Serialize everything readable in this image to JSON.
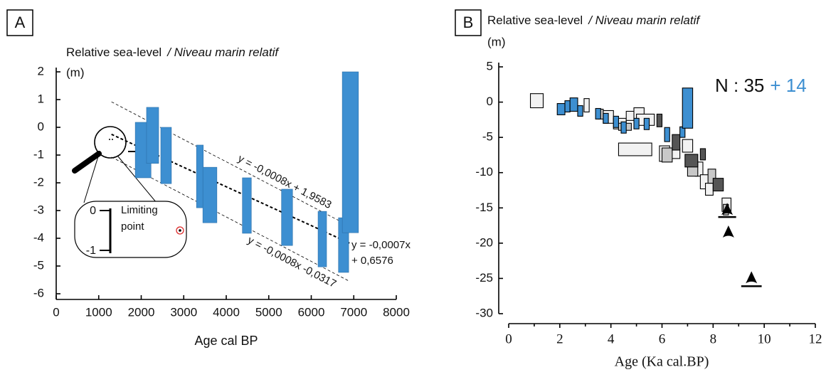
{
  "chart_data": [
    {
      "type": "range",
      "panel": "A",
      "title": "Relative sea-level",
      "title_italic": "/ Niveau marin relatif",
      "y_unit": "(m)",
      "xlabel": "Age cal BP",
      "xlim": [
        0,
        8000
      ],
      "xticks": [
        0,
        1000,
        2000,
        3000,
        4000,
        5000,
        6000,
        7000,
        8000
      ],
      "ylim": [
        -6,
        2
      ],
      "yticks": [
        -6,
        -5,
        -4,
        -3,
        -2,
        -1,
        0,
        1,
        2
      ],
      "series": [
        {
          "color": "#3d8fd1",
          "x0": [
            1860,
            2125,
            2460,
            3300,
            3450,
            4380,
            5300,
            6160,
            6640,
            6730
          ],
          "x1": [
            2230,
            2410,
            2710,
            3460,
            3780,
            4590,
            5560,
            6360,
            6880,
            7110
          ],
          "y0": [
            0.18,
            0.72,
            0,
            -0.64,
            -1.44,
            -1.82,
            -2.23,
            -3.03,
            -3.26,
            2.0
          ],
          "y1": [
            -1.82,
            -1.3,
            -2.03,
            -2.9,
            -3.44,
            -3.82,
            -4.26,
            -5.03,
            -5.23,
            -3.8
          ]
        }
      ],
      "trend_lines": [
        {
          "slope": -0.0008,
          "intercept": 1.9583,
          "x": [
            1300,
            6900
          ],
          "label": [
            "y = -0,0008x + 1,9583"
          ]
        },
        {
          "slope": -0.0007,
          "intercept": 0.6576,
          "x": [
            1300,
            6900
          ],
          "label": [
            "y = -0,0007x",
            "+ 0,6576"
          ]
        },
        {
          "slope": -0.0008,
          "intercept": -0.0317,
          "x": [
            1300,
            6900
          ],
          "label": [
            "y = -0,0008x -0,0317"
          ]
        }
      ],
      "inset": {
        "label": [
          "Limiting",
          "point"
        ],
        "ticks": [
          "0",
          "-1"
        ]
      }
    },
    {
      "type": "range",
      "panel": "B",
      "title": "Relative sea-level",
      "title_italic": "/ Niveau marin relatif",
      "y_unit": "(m)",
      "xlabel": "Age (Ka cal.BP)",
      "xlim": [
        0,
        12
      ],
      "xticks": [
        0,
        2,
        4,
        6,
        8,
        10,
        12
      ],
      "xminorticks": [
        1,
        3,
        5,
        7,
        9,
        11
      ],
      "ylim": [
        -30,
        5
      ],
      "yticks": [
        -30,
        -25,
        -20,
        -15,
        -10,
        -5,
        0,
        5
      ],
      "series": [
        {
          "color": "#f2f2f2",
          "x0": [
            0.85,
            2.95,
            3.7,
            4.1,
            4.6,
            4.9,
            5.0,
            4.3,
            5.9,
            6.2,
            6.8,
            7.3,
            7.5,
            7.7,
            8.35
          ],
          "x1": [
            1.35,
            3.15,
            4.1,
            4.6,
            5.0,
            5.3,
            5.7,
            5.6,
            6.3,
            6.7,
            7.2,
            7.6,
            7.9,
            8.0,
            8.7
          ],
          "y0": [
            1.2,
            0.5,
            -1.2,
            -2.3,
            -1.3,
            -0.8,
            -1.7,
            -5.8,
            -6.2,
            -6.5,
            -5.3,
            -8.5,
            -10.3,
            -11.5,
            -13.6
          ],
          "y1": [
            -0.8,
            -1.4,
            -3.0,
            -3.8,
            -2.6,
            -2.5,
            -3.3,
            -7.6,
            -8.4,
            -8.0,
            -7.1,
            -10.5,
            -12.3,
            -13.2,
            -15.5
          ]
        },
        {
          "color": "#c8c8c8",
          "x0": [
            4.3,
            6.0,
            7.0,
            7.8,
            8.4,
            3.5
          ],
          "x1": [
            4.8,
            6.4,
            7.4,
            8.1,
            8.6,
            3.7
          ],
          "y0": [
            -3.0,
            -6.5,
            -8.3,
            -9.5,
            -14.5,
            -1.0
          ],
          "y1": [
            -4.0,
            -8.5,
            -10.5,
            -11.5,
            -16.0,
            -2.4
          ]
        },
        {
          "color": "#555555",
          "x0": [
            5.8,
            6.4,
            6.9,
            7.5,
            8.0
          ],
          "x1": [
            6.0,
            6.7,
            7.4,
            7.7,
            8.4
          ],
          "y0": [
            -1.7,
            -4.6,
            -7.4,
            -6.6,
            -10.8
          ],
          "y1": [
            -3.5,
            -6.8,
            -9.2,
            -8.2,
            -12.6
          ]
        },
        {
          "color": "#3d8fd1",
          "x0": [
            1.9,
            2.2,
            2.4,
            2.7,
            3.4,
            3.7,
            4.1,
            4.4,
            4.9,
            5.3,
            6.1,
            6.7,
            6.8
          ],
          "x1": [
            2.2,
            2.4,
            2.7,
            2.9,
            3.6,
            3.9,
            4.3,
            4.6,
            5.1,
            5.5,
            6.3,
            6.9,
            7.2
          ],
          "y0": [
            -0.2,
            0.2,
            0.6,
            -0.5,
            -0.9,
            -1.6,
            -2.0,
            -2.8,
            -2.3,
            -2.3,
            -3.6,
            -3.5,
            2.0
          ],
          "y1": [
            -1.8,
            -1.4,
            -1.3,
            -2.0,
            -2.4,
            -3.0,
            -3.6,
            -4.4,
            -3.8,
            -3.9,
            -5.6,
            -5.0,
            -3.7
          ]
        }
      ],
      "limiting_points": {
        "x": [
          8.55,
          8.6,
          9.5
        ],
        "y": [
          -15.3,
          -18.5,
          -25
        ]
      },
      "limiting_bars": {
        "x0": [
          8.2,
          9.1
        ],
        "x1": [
          8.9,
          9.9
        ],
        "y": [
          -16.3,
          -26.1
        ]
      },
      "annotation": {
        "count": "N : 35",
        "extra": "+ 14",
        "extra_color": "#3d8fd1"
      }
    }
  ]
}
